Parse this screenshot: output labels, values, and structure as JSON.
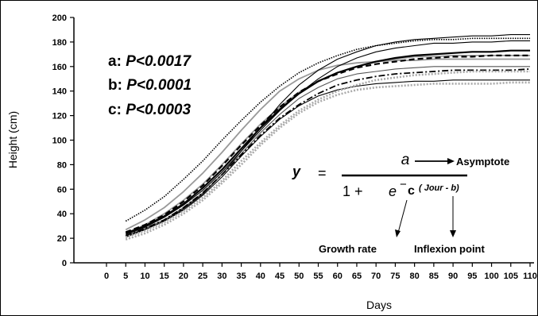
{
  "chart_data": {
    "type": "line",
    "title": "",
    "xlabel": "Days",
    "ylabel": "Height (cm)",
    "xlim": [
      0,
      110
    ],
    "ylim": [
      0,
      200
    ],
    "x_ticks": [
      0,
      5,
      10,
      15,
      20,
      25,
      30,
      35,
      40,
      45,
      50,
      55,
      60,
      65,
      70,
      75,
      80,
      85,
      90,
      95,
      100,
      105,
      110
    ],
    "y_ticks": [
      0,
      20,
      40,
      60,
      80,
      100,
      120,
      140,
      160,
      180,
      200
    ],
    "grid": false,
    "legend": "none",
    "x": [
      5,
      10,
      15,
      20,
      25,
      30,
      35,
      40,
      45,
      50,
      55,
      60,
      65,
      70,
      75,
      80,
      85,
      90,
      95,
      100,
      105,
      110
    ],
    "series": [
      {
        "color": "#000000",
        "dash": "1.5,1.5",
        "width": 1.6,
        "values": [
          34,
          43,
          54,
          68,
          83,
          100,
          116,
          131,
          144,
          155,
          163,
          169,
          174,
          177,
          179,
          181,
          182,
          182,
          183,
          183,
          183,
          183
        ]
      },
      {
        "color": "#999999",
        "dash": "",
        "width": 1.8,
        "values": [
          27,
          35,
          45,
          58,
          73,
          90,
          108,
          125,
          140,
          150,
          157,
          161,
          163,
          164,
          165,
          165,
          166,
          166,
          166,
          166,
          166,
          166
        ]
      },
      {
        "color": "#999999",
        "dash": "",
        "width": 1.8,
        "values": [
          24,
          31,
          40,
          51,
          64,
          80,
          97,
          113,
          127,
          139,
          148,
          155,
          160,
          164,
          166,
          168,
          168,
          169,
          169,
          169,
          169,
          169
        ]
      },
      {
        "color": "#000000",
        "dash": "",
        "width": 1.1,
        "values": [
          22,
          27,
          34,
          44,
          56,
          72,
          91,
          110,
          129,
          145,
          157,
          166,
          172,
          177,
          180,
          182,
          183,
          184,
          185,
          185,
          186,
          186
        ]
      },
      {
        "color": "#000000",
        "dash": "7,4",
        "width": 2.2,
        "values": [
          25,
          31,
          39,
          50,
          63,
          79,
          96,
          112,
          127,
          139,
          148,
          154,
          159,
          162,
          164,
          166,
          167,
          168,
          168,
          169,
          169,
          169
        ]
      },
      {
        "color": "#000000",
        "dash": "",
        "width": 2.2,
        "values": [
          24,
          30,
          38,
          48,
          61,
          76,
          93,
          110,
          125,
          138,
          148,
          155,
          160,
          164,
          167,
          169,
          170,
          171,
          172,
          172,
          173,
          173
        ]
      },
      {
        "color": "#000000",
        "dash": "",
        "width": 1.1,
        "values": [
          23,
          29,
          37,
          47,
          59,
          74,
          91,
          108,
          124,
          138,
          150,
          160,
          167,
          172,
          175,
          177,
          179,
          179,
          180,
          180,
          181,
          181
        ]
      },
      {
        "color": "#555555",
        "dash": "",
        "width": 1.1,
        "values": [
          22,
          28,
          35,
          45,
          57,
          72,
          89,
          106,
          121,
          134,
          143,
          150,
          154,
          156,
          158,
          159,
          160,
          160,
          160,
          160,
          160,
          160
        ]
      },
      {
        "color": "#000000",
        "dash": "8,3,2,3",
        "width": 1.8,
        "values": [
          22,
          28,
          35,
          45,
          57,
          72,
          88,
          104,
          118,
          129,
          138,
          145,
          149,
          152,
          154,
          155,
          156,
          157,
          157,
          157,
          157,
          158
        ]
      },
      {
        "color": "#000000",
        "dash": "",
        "width": 1.1,
        "values": [
          21,
          27,
          34,
          43,
          55,
          70,
          87,
          103,
          117,
          128,
          136,
          141,
          144,
          146,
          147,
          148,
          148,
          149,
          149,
          149,
          149,
          149
        ]
      },
      {
        "color": "#aaaaaa",
        "dash": "2,2",
        "width": 2.6,
        "values": [
          21,
          26,
          33,
          42,
          53,
          67,
          83,
          98,
          112,
          124,
          133,
          140,
          145,
          149,
          151,
          153,
          154,
          155,
          156,
          156,
          156,
          156
        ]
      },
      {
        "color": "#aaaaaa",
        "dash": "2,2",
        "width": 2.6,
        "values": [
          19,
          24,
          31,
          40,
          51,
          65,
          80,
          96,
          110,
          122,
          131,
          137,
          141,
          143,
          144,
          145,
          146,
          146,
          146,
          146,
          147,
          147
        ]
      }
    ],
    "annotations": [
      {
        "label": "a:",
        "value": "P<0.0017"
      },
      {
        "label": "b:",
        "value": "P<0.0001"
      },
      {
        "label": "c:",
        "value": "P<0.0003"
      }
    ],
    "equation": {
      "lhs": "y",
      "equals": "=",
      "numerator": "a",
      "denominator_prefix": "1 +",
      "base": "e",
      "minus": "−",
      "exponent_symbol": "c",
      "exponent_inner": "( Jour - b)",
      "labels": {
        "asymptote": "Asymptote",
        "growth_rate": "Growth rate",
        "inflexion_point": "Inflexion point"
      }
    }
  }
}
